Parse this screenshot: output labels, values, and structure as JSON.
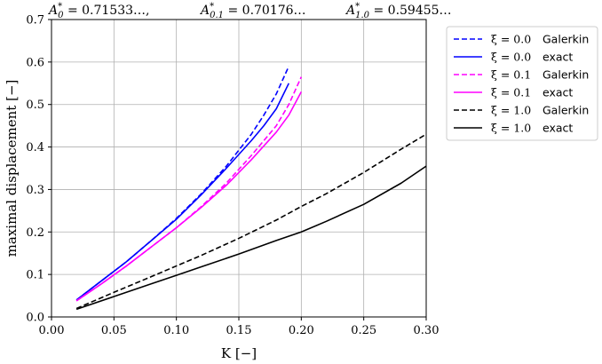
{
  "chart_data": {
    "type": "line",
    "title": "A*_0 = 0.71533…,  A*_0.1 = 0.70176…  A*_1.0 = 0.59455…",
    "title_parts": [
      {
        "text": "A",
        "sub": "0",
        "sup": "*",
        "value": " = 0.71533…,"
      },
      {
        "text": "A",
        "sub": "0.1",
        "sup": "*",
        "value": " = 0.70176…"
      },
      {
        "text": "A",
        "sub": "1.0",
        "sup": "*",
        "value": " = 0.59455…"
      }
    ],
    "xlabel": "K    [−]",
    "ylabel": "maximal displacement    [−]",
    "xlim": [
      0.0,
      0.3
    ],
    "ylim": [
      0.0,
      0.7
    ],
    "xticks": [
      "0.00",
      "0.05",
      "0.10",
      "0.15",
      "0.20",
      "0.25",
      "0.30"
    ],
    "xtick_values": [
      0.0,
      0.05,
      0.1,
      0.15,
      0.2,
      0.25,
      0.3
    ],
    "yticks": [
      "0.0",
      "0.1",
      "0.2",
      "0.3",
      "0.4",
      "0.5",
      "0.6",
      "0.7"
    ],
    "ytick_values": [
      0.0,
      0.1,
      0.2,
      0.3,
      0.4,
      0.5,
      0.6,
      0.7
    ],
    "grid": true,
    "legend_position": "outside-right",
    "series": [
      {
        "name": "ξ = 0.0   Galerkin",
        "symbol": "ξ = 0.0",
        "kind": "Galerkin",
        "color": "#0000ff",
        "style": "dashed",
        "x": [
          0.02,
          0.04,
          0.06,
          0.08,
          0.1,
          0.12,
          0.14,
          0.16,
          0.17,
          0.18,
          0.19
        ],
        "y": [
          0.04,
          0.085,
          0.13,
          0.18,
          0.232,
          0.29,
          0.355,
          0.43,
          0.475,
          0.525,
          0.59
        ]
      },
      {
        "name": "ξ = 0.0   exact",
        "symbol": "ξ = 0.0",
        "kind": "exact",
        "color": "#0000ff",
        "style": "solid",
        "x": [
          0.02,
          0.04,
          0.06,
          0.08,
          0.1,
          0.12,
          0.14,
          0.16,
          0.17,
          0.18,
          0.19
        ],
        "y": [
          0.04,
          0.085,
          0.13,
          0.18,
          0.23,
          0.288,
          0.35,
          0.415,
          0.45,
          0.49,
          0.55
        ]
      },
      {
        "name": "ξ = 0.1   Galerkin",
        "symbol": "ξ = 0.1",
        "kind": "Galerkin",
        "color": "#ff00ff",
        "style": "dashed",
        "x": [
          0.02,
          0.04,
          0.06,
          0.08,
          0.1,
          0.12,
          0.14,
          0.16,
          0.18,
          0.19,
          0.2
        ],
        "y": [
          0.038,
          0.078,
          0.12,
          0.165,
          0.21,
          0.26,
          0.315,
          0.38,
          0.45,
          0.5,
          0.565
        ]
      },
      {
        "name": "ξ = 0.1   exact",
        "symbol": "ξ = 0.1",
        "kind": "exact",
        "color": "#ff00ff",
        "style": "solid",
        "x": [
          0.02,
          0.04,
          0.06,
          0.08,
          0.1,
          0.12,
          0.14,
          0.16,
          0.18,
          0.19,
          0.2
        ],
        "y": [
          0.038,
          0.078,
          0.12,
          0.165,
          0.21,
          0.258,
          0.31,
          0.37,
          0.435,
          0.475,
          0.53
        ]
      },
      {
        "name": "ξ = 1.0   Galerkin",
        "symbol": "ξ = 1.0",
        "kind": "Galerkin",
        "color": "#000000",
        "style": "dashed",
        "x": [
          0.02,
          0.05,
          0.08,
          0.1,
          0.12,
          0.15,
          0.18,
          0.2,
          0.22,
          0.25,
          0.28,
          0.3
        ],
        "y": [
          0.02,
          0.058,
          0.095,
          0.12,
          0.145,
          0.185,
          0.228,
          0.26,
          0.29,
          0.34,
          0.395,
          0.43
        ]
      },
      {
        "name": "ξ = 1.0   exact",
        "symbol": "ξ = 1.0",
        "kind": "exact",
        "color": "#000000",
        "style": "solid",
        "x": [
          0.02,
          0.05,
          0.08,
          0.1,
          0.12,
          0.15,
          0.18,
          0.2,
          0.22,
          0.25,
          0.28,
          0.3
        ],
        "y": [
          0.018,
          0.048,
          0.078,
          0.098,
          0.118,
          0.148,
          0.18,
          0.2,
          0.225,
          0.265,
          0.315,
          0.355
        ]
      }
    ]
  }
}
